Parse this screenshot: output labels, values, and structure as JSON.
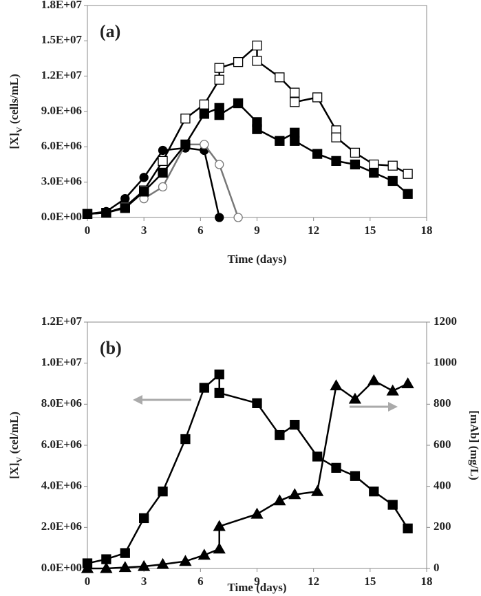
{
  "chart_data": [
    {
      "type": "line",
      "annotation": "(a)",
      "xlabel": "Time (days)",
      "ylabel": [
        "[X]",
        "V",
        " (cells/mL)"
      ],
      "xlim": [
        0,
        18
      ],
      "xticks": [
        0,
        3,
        6,
        9,
        12,
        15,
        18
      ],
      "ylim": [
        0,
        18000000
      ],
      "yticks": [
        {
          "value": 0,
          "label": "0.0E+00"
        },
        {
          "value": 3000000,
          "label": "3.0E+06"
        },
        {
          "value": 6000000,
          "label": "6.0E+06"
        },
        {
          "value": 9000000,
          "label": "9.0E+06"
        },
        {
          "value": 12000000,
          "label": "1.2E+07"
        },
        {
          "value": 15000000,
          "label": "1.5E+07"
        },
        {
          "value": 18000000,
          "label": "1.8E+07"
        }
      ],
      "series": [
        {
          "marker": "circle",
          "filled": true,
          "color": "#000000",
          "x": [
            0,
            1,
            2,
            3,
            4,
            5.2,
            6.2,
            7
          ],
          "values": [
            300000,
            500000,
            1600000,
            3400000,
            5700000,
            5900000,
            5700000,
            0
          ]
        },
        {
          "marker": "circle",
          "filled": false,
          "color": "#777777",
          "x": [
            3,
            4,
            5.2,
            6.2,
            7,
            8
          ],
          "values": [
            1600000,
            2600000,
            6200000,
            6200000,
            4500000,
            0
          ]
        },
        {
          "marker": "square",
          "filled": false,
          "color": "#000000",
          "x": [
            0,
            1,
            2,
            3,
            4,
            5.2,
            6.2,
            7,
            7,
            8,
            9,
            9,
            10.2,
            11,
            11,
            12.2,
            13.2,
            13.2,
            14.2,
            15.2,
            16.2,
            17
          ],
          "values": [
            300000,
            400000,
            900000,
            2300000,
            4800000,
            8400000,
            9600000,
            11700000,
            12700000,
            13200000,
            14600000,
            13300000,
            11900000,
            10600000,
            9800000,
            10200000,
            7400000,
            6800000,
            5500000,
            4500000,
            4400000,
            3700000
          ]
        },
        {
          "marker": "square",
          "filled": true,
          "color": "#000000",
          "x": [
            0,
            1,
            2,
            3,
            4,
            5.2,
            6.2,
            7,
            7,
            8,
            9,
            9,
            10.2,
            11,
            11,
            12.2,
            13.2,
            14.2,
            15.2,
            16.2,
            17
          ],
          "values": [
            300000,
            400000,
            800000,
            2200000,
            3800000,
            6200000,
            8800000,
            9300000,
            8700000,
            9700000,
            8100000,
            7500000,
            6500000,
            7200000,
            6500000,
            5400000,
            4800000,
            4500000,
            3800000,
            3100000,
            2000000
          ]
        }
      ]
    },
    {
      "type": "line",
      "annotation": "(b)",
      "xlabel": "Time (days)",
      "ylabel": [
        "[X]",
        "V",
        " (cel/mL)"
      ],
      "y2label": "[mAb] (mg/L)",
      "xlim": [
        0,
        18
      ],
      "xticks": [
        0,
        3,
        6,
        9,
        12,
        15,
        18
      ],
      "ylim": [
        0,
        12000000
      ],
      "yticks": [
        {
          "value": 0,
          "label": "0.0E+00"
        },
        {
          "value": 2000000,
          "label": "2.0E+06"
        },
        {
          "value": 4000000,
          "label": "4.0E+06"
        },
        {
          "value": 6000000,
          "label": "6.0E+06"
        },
        {
          "value": 8000000,
          "label": "8.0E+06"
        },
        {
          "value": 10000000,
          "label": "1.0E+07"
        },
        {
          "value": 12000000,
          "label": "1.2E+07"
        }
      ],
      "y2lim": [
        0,
        1200
      ],
      "y2ticks": [
        0,
        200,
        400,
        600,
        800,
        1000,
        1200
      ],
      "series": [
        {
          "marker": "square",
          "filled": true,
          "color": "#000000",
          "x": [
            0,
            1,
            2,
            3,
            4,
            5.2,
            6.2,
            7,
            7,
            9,
            10.2,
            11,
            12.2,
            13.2,
            14.2,
            15.2,
            16.2,
            17
          ],
          "values": [
            250000,
            450000,
            750000,
            2450000,
            3750000,
            6300000,
            8800000,
            9450000,
            8550000,
            8050000,
            6500000,
            7000000,
            5450000,
            4900000,
            4500000,
            3750000,
            3100000,
            1950000
          ]
        },
        {
          "marker": "triangle",
          "filled": true,
          "color": "#000000",
          "axis": "y2",
          "x": [
            0,
            1,
            2,
            3,
            4,
            5.2,
            6.2,
            7,
            7,
            9,
            10.2,
            11,
            12.2,
            13.2,
            14.2,
            15.2,
            16.2,
            17
          ],
          "values": [
            0,
            0,
            5,
            10,
            20,
            35,
            65,
            95,
            205,
            265,
            330,
            360,
            375,
            890,
            825,
            915,
            865,
            900
          ]
        }
      ]
    }
  ]
}
